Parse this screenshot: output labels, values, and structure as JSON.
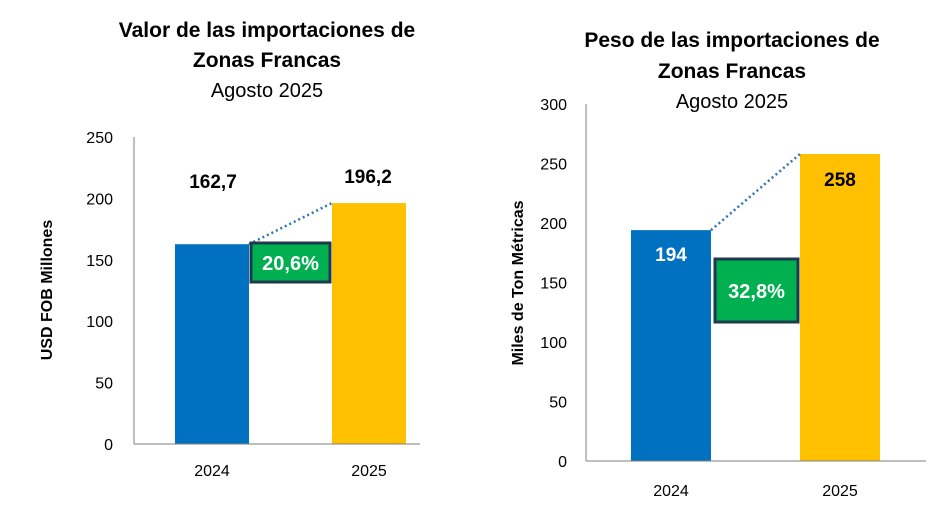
{
  "chart_data": [
    {
      "type": "bar",
      "title": "Valor de las importaciones de Zonas Francas",
      "title_lines": [
        "Valor de las importaciones de",
        "Zonas Francas"
      ],
      "subtitle": "Agosto 2025",
      "categories": [
        "2024",
        "2025"
      ],
      "values": [
        162.7,
        196.2
      ],
      "value_labels": [
        "162,7",
        "196,2"
      ],
      "ylabel": "USD FOB Millones",
      "xlabel": "",
      "ylim": [
        0,
        250
      ],
      "yticks": [
        0,
        50,
        100,
        150,
        200,
        250
      ],
      "growth_label": "20,6%",
      "grid": false,
      "bar_colors": [
        "#0070C0",
        "#FFC000"
      ],
      "growth_box_color": "#00B050"
    },
    {
      "type": "bar",
      "title": "Peso de las importaciones de Zonas Francas",
      "title_lines": [
        "Peso de las importaciones de",
        "Zonas Francas"
      ],
      "subtitle": "Agosto 2025",
      "categories": [
        "2024",
        "2025"
      ],
      "values": [
        194,
        258
      ],
      "value_labels": [
        "194",
        "258"
      ],
      "ylabel": "Miles de Ton Métricas",
      "xlabel": "",
      "ylim": [
        0,
        300
      ],
      "yticks": [
        0,
        50,
        100,
        150,
        200,
        250,
        300
      ],
      "growth_label": "32,8%",
      "grid": false,
      "bar_colors": [
        "#0070C0",
        "#FFC000"
      ],
      "growth_box_color": "#00B050"
    }
  ]
}
